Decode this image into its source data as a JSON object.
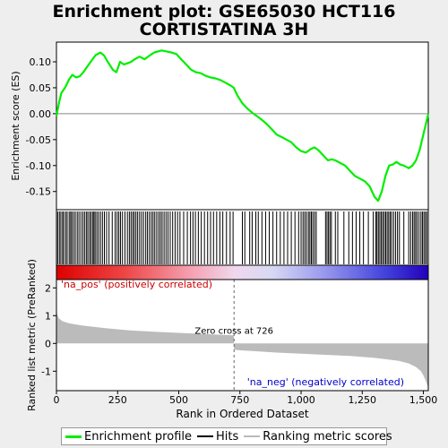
{
  "title_line1": "Enrichment plot: GSE65030 HCT116",
  "title_line2": "CORTISTATINA 3H",
  "legend": {
    "items": [
      {
        "label": "Enrichment profile",
        "color": "#00ee00"
      },
      {
        "label": "Hits",
        "color": "#000000"
      },
      {
        "label": "Ranking metric scores",
        "color": "#bbbbbb"
      }
    ]
  },
  "chart_data": {
    "type": "line",
    "n_genes": 1520,
    "xlabel": "Rank in Ordered Dataset",
    "xticks": [
      0,
      250,
      500,
      750,
      1000,
      1250,
      1500
    ],
    "xtick_labels": [
      "0",
      "250",
      "500",
      "750",
      "1,000",
      "1,250",
      "1,500"
    ],
    "enrichment": {
      "ylabel": "Enrichment score (ES)",
      "ylim": [
        -0.185,
        0.138
      ],
      "yticks": [
        0.1,
        0.05,
        0.0,
        -0.05,
        -0.1,
        -0.15
      ],
      "ytick_labels": [
        "0.10",
        "0.05",
        "0.00",
        "-0.05",
        "-0.10",
        "-0.15"
      ],
      "line_color": "#00ee00",
      "x": [
        0,
        10,
        20,
        35,
        50,
        65,
        80,
        95,
        110,
        125,
        140,
        160,
        180,
        195,
        210,
        230,
        245,
        260,
        275,
        290,
        305,
        320,
        340,
        360,
        380,
        400,
        415,
        430,
        450,
        470,
        490,
        510,
        530,
        550,
        570,
        590,
        610,
        630,
        650,
        670,
        690,
        710,
        725,
        740,
        760,
        780,
        800,
        820,
        840,
        860,
        880,
        900,
        920,
        940,
        960,
        980,
        1000,
        1020,
        1040,
        1055,
        1070,
        1090,
        1110,
        1125,
        1140,
        1160,
        1180,
        1200,
        1220,
        1240,
        1260,
        1280,
        1300,
        1315,
        1330,
        1345,
        1360,
        1375,
        1390,
        1405,
        1420,
        1440,
        1455,
        1470,
        1485,
        1500,
        1510,
        1520
      ],
      "y": [
        -0.005,
        0.02,
        0.04,
        0.05,
        0.065,
        0.075,
        0.07,
        0.072,
        0.08,
        0.09,
        0.1,
        0.113,
        0.118,
        0.112,
        0.1,
        0.085,
        0.08,
        0.1,
        0.095,
        0.097,
        0.1,
        0.105,
        0.11,
        0.105,
        0.112,
        0.118,
        0.12,
        0.122,
        0.12,
        0.118,
        0.115,
        0.105,
        0.095,
        0.085,
        0.08,
        0.078,
        0.073,
        0.07,
        0.068,
        0.065,
        0.06,
        0.055,
        0.05,
        0.035,
        0.02,
        0.01,
        0.002,
        -0.005,
        -0.012,
        -0.02,
        -0.03,
        -0.04,
        -0.045,
        -0.05,
        -0.055,
        -0.065,
        -0.072,
        -0.075,
        -0.068,
        -0.065,
        -0.07,
        -0.08,
        -0.09,
        -0.088,
        -0.09,
        -0.095,
        -0.1,
        -0.11,
        -0.12,
        -0.125,
        -0.13,
        -0.14,
        -0.16,
        -0.168,
        -0.15,
        -0.12,
        -0.1,
        -0.098,
        -0.093,
        -0.098,
        -0.1,
        -0.105,
        -0.1,
        -0.09,
        -0.07,
        -0.04,
        -0.02,
        0.0
      ]
    },
    "hits": [
      5,
      12,
      18,
      25,
      30,
      38,
      44,
      52,
      58,
      63,
      70,
      77,
      85,
      92,
      100,
      108,
      115,
      122,
      128,
      135,
      141,
      148,
      153,
      158,
      165,
      172,
      180,
      188,
      196,
      205,
      215,
      228,
      240,
      248,
      255,
      262,
      270,
      280,
      290,
      298,
      305,
      312,
      318,
      325,
      332,
      340,
      348,
      356,
      365,
      372,
      380,
      388,
      395,
      402,
      410,
      418,
      425,
      432,
      440,
      448,
      456,
      465,
      475,
      485,
      495,
      505,
      520,
      535,
      548,
      558,
      568,
      580,
      592,
      605,
      618,
      630,
      642,
      655,
      668,
      680,
      695,
      710,
      722,
      760,
      770,
      790,
      800,
      815,
      825,
      840,
      855,
      870,
      885,
      900,
      915,
      930,
      945,
      960,
      975,
      990,
      1000,
      1008,
      1015,
      1022,
      1030,
      1036,
      1042,
      1048,
      1055,
      1062,
      1100,
      1106,
      1112,
      1118,
      1124,
      1140,
      1150,
      1175,
      1195,
      1210,
      1225,
      1240,
      1255,
      1275,
      1295,
      1305,
      1310,
      1316,
      1322,
      1328,
      1334,
      1340,
      1346,
      1352,
      1358,
      1364,
      1370,
      1378,
      1386,
      1394,
      1402,
      1420,
      1440,
      1448,
      1456,
      1462,
      1468,
      1474,
      1482,
      1490,
      1496,
      1502,
      1508,
      1514
    ],
    "ranking": {
      "ylabel": "Ranked list metric (PreRanked)",
      "ylim": [
        -1.7,
        2.3
      ],
      "yticks": [
        2,
        1,
        0,
        -1
      ],
      "ytick_labels": [
        "2",
        "1",
        "0",
        "-1"
      ],
      "fill_color": "#bbbbbb",
      "x": [
        0,
        3,
        10,
        25,
        50,
        100,
        200,
        300,
        400,
        500,
        600,
        700,
        725,
        726,
        740,
        800,
        900,
        1000,
        1100,
        1200,
        1300,
        1350,
        1400,
        1440,
        1470,
        1490,
        1500,
        1510,
        1520
      ],
      "y": [
        1.3,
        1.05,
        0.9,
        0.8,
        0.73,
        0.65,
        0.55,
        0.47,
        0.42,
        0.38,
        0.34,
        0.3,
        0.29,
        -0.22,
        -0.24,
        -0.27,
        -0.33,
        -0.37,
        -0.41,
        -0.45,
        -0.52,
        -0.57,
        -0.63,
        -0.72,
        -0.85,
        -1.0,
        -1.15,
        -1.35,
        -1.6
      ]
    },
    "zero_cross": 726,
    "annotations": {
      "zero_cross": "Zero cross at 726",
      "pos_label": "'na_pos' (positively correlated)",
      "neg_label": "'na_neg' (negatively correlated)",
      "pos_color": "#cc0000",
      "neg_color": "#0000cc"
    }
  }
}
